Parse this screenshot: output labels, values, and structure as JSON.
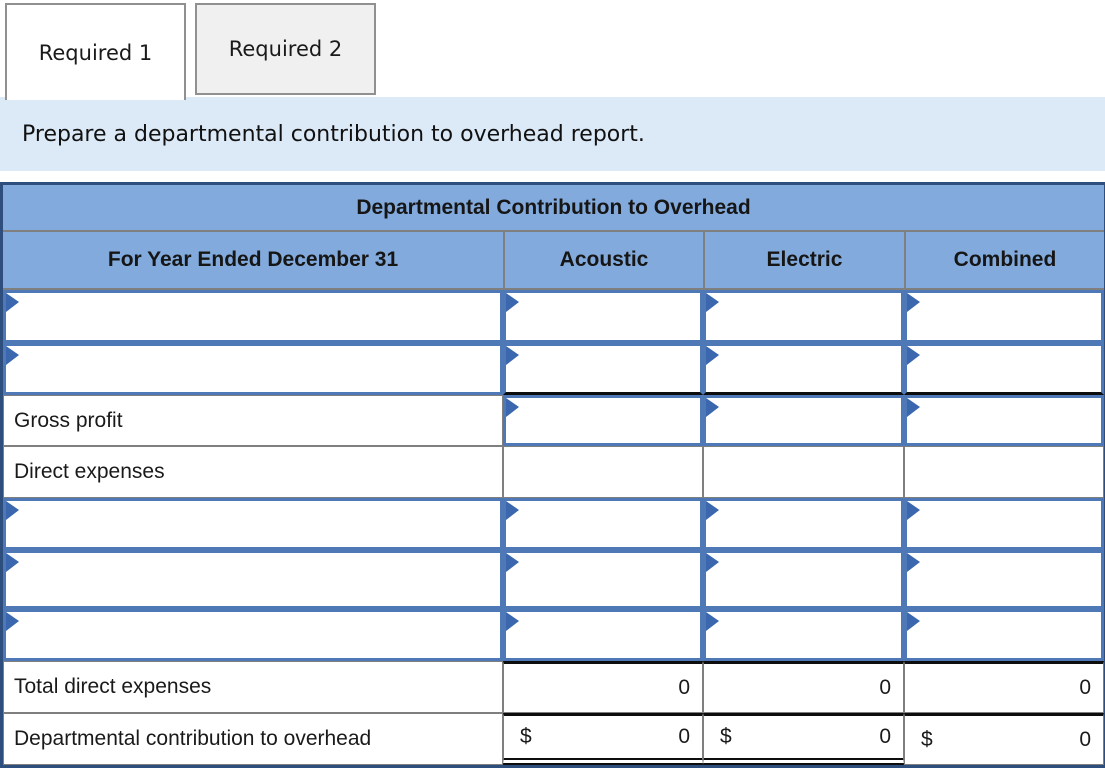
{
  "tabs": {
    "required1": "Required 1",
    "required2": "Required 2"
  },
  "instruction": "Prepare a departmental contribution to overhead report.",
  "table": {
    "title": "Departmental Contribution to Overhead",
    "header": {
      "label": "For Year Ended December 31",
      "col1": "Acoustic",
      "col2": "Electric",
      "col3": "Combined"
    },
    "rows": [
      {
        "label": ""
      },
      {
        "label": ""
      },
      {
        "label": "Gross profit"
      },
      {
        "label": "Direct expenses"
      },
      {
        "label": ""
      },
      {
        "label": ""
      },
      {
        "label": ""
      },
      {
        "label": "Total direct expenses",
        "col1": "0",
        "col2": "0",
        "col3": "0"
      },
      {
        "label": "Departmental contribution to overhead",
        "currency": "$",
        "col1": "0",
        "col2": "0",
        "col3": "0"
      }
    ]
  },
  "colors": {
    "header_blue": "#82aadc",
    "banner_blue": "#dce9f7",
    "input_border_blue": "#4f78b7",
    "marker_blue": "#3a67ae",
    "table_outline_navy": "#2e4e7e",
    "grid_gray": "#7f7f7f",
    "inactive_tab_gray": "#f0f0f0"
  }
}
